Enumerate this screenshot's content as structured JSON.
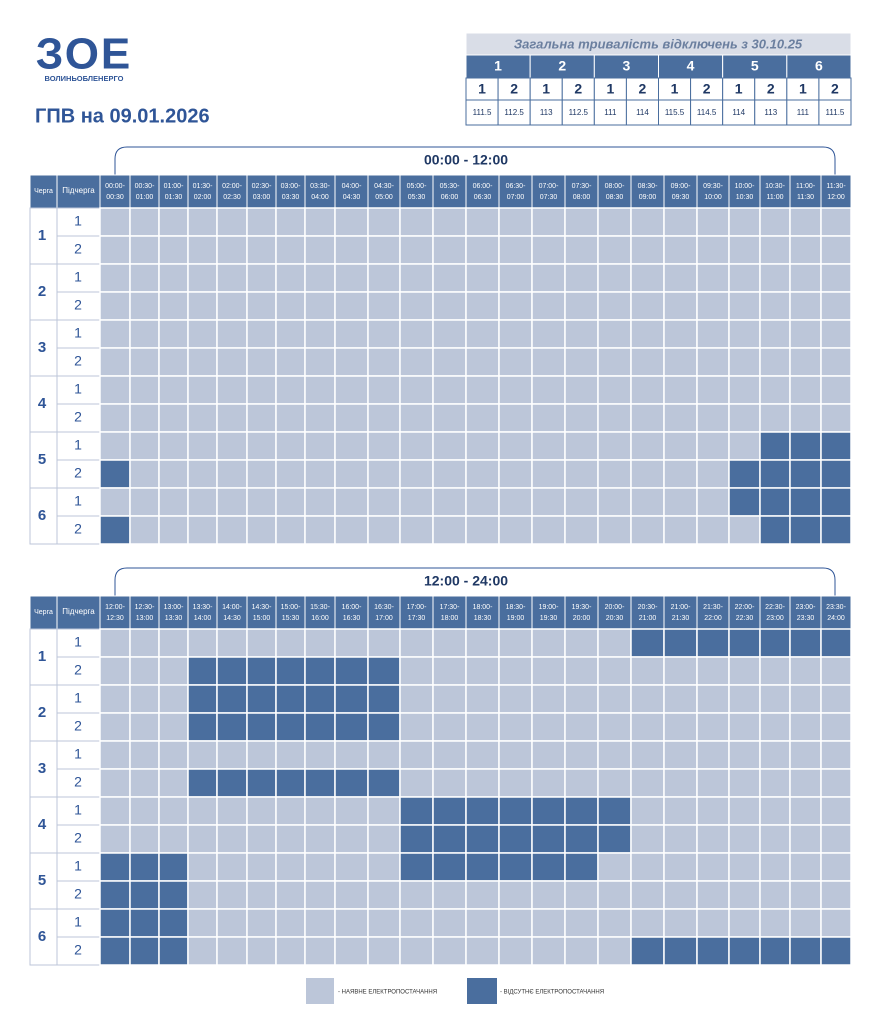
{
  "logo": {
    "mark": "ЗОЕ",
    "name": "ВОЛИНЬОБЛЕНЕРГО"
  },
  "title": "ГПВ на 09.01.2026",
  "summary": {
    "title": "Загальна тривалість відключень з 30.10.25",
    "queues": [
      "1",
      "2",
      "3",
      "4",
      "5",
      "6"
    ],
    "subqueues": [
      [
        "1",
        "2"
      ],
      [
        "1",
        "2"
      ],
      [
        "1",
        "2"
      ],
      [
        "1",
        "2"
      ],
      [
        "1",
        "2"
      ],
      [
        "1",
        "2"
      ]
    ],
    "values": [
      "111.5",
      "112.5",
      "113",
      "112.5",
      "111",
      "114",
      "115.5",
      "114.5",
      "114",
      "113",
      "111",
      "111.5"
    ]
  },
  "tables": [
    {
      "caption": "00:00 - 12:00",
      "queue_header": "Черга",
      "subqueue_header": "Підчерга",
      "slots": [
        [
          "00:00-",
          "00:30"
        ],
        [
          "00:30-",
          "01:00"
        ],
        [
          "01:00-",
          "01:30"
        ],
        [
          "01:30-",
          "02:00"
        ],
        [
          "02:00-",
          "02:30"
        ],
        [
          "02:30-",
          "03:00"
        ],
        [
          "03:00-",
          "03:30"
        ],
        [
          "03:30-",
          "04:00"
        ],
        [
          "04:00-",
          "04:30"
        ],
        [
          "04:30-",
          "05:00"
        ],
        [
          "05:00-",
          "05:30"
        ],
        [
          "05:30-",
          "06:00"
        ],
        [
          "06:00-",
          "06:30"
        ],
        [
          "06:30-",
          "07:00"
        ],
        [
          "07:00-",
          "07:30"
        ],
        [
          "07:30-",
          "08:00"
        ],
        [
          "08:00-",
          "08:30"
        ],
        [
          "08:30-",
          "09:00"
        ],
        [
          "09:00-",
          "09:30"
        ],
        [
          "09:30-",
          "10:00"
        ],
        [
          "10:00-",
          "10:30"
        ],
        [
          "10:30-",
          "11:00"
        ],
        [
          "11:00-",
          "11:30"
        ],
        [
          "11:30-",
          "12:00"
        ]
      ],
      "rows": [
        {
          "queue": "1",
          "subqueues": [
            {
              "label": "1",
              "outage": [
                0,
                0,
                0,
                0,
                0,
                0,
                0,
                0,
                0,
                0,
                0,
                0,
                0,
                0,
                0,
                0,
                0,
                0,
                0,
                0,
                0,
                0,
                0,
                0
              ]
            },
            {
              "label": "2",
              "outage": [
                0,
                0,
                0,
                0,
                0,
                0,
                0,
                0,
                0,
                0,
                0,
                0,
                0,
                0,
                0,
                0,
                0,
                0,
                0,
                0,
                0,
                0,
                0,
                0
              ]
            }
          ]
        },
        {
          "queue": "2",
          "subqueues": [
            {
              "label": "1",
              "outage": [
                0,
                0,
                0,
                0,
                0,
                0,
                0,
                0,
                0,
                0,
                0,
                0,
                0,
                0,
                0,
                0,
                0,
                0,
                0,
                0,
                0,
                0,
                0,
                0
              ]
            },
            {
              "label": "2",
              "outage": [
                0,
                0,
                0,
                0,
                0,
                0,
                0,
                0,
                0,
                0,
                0,
                0,
                0,
                0,
                0,
                0,
                0,
                0,
                0,
                0,
                0,
                0,
                0,
                0
              ]
            }
          ]
        },
        {
          "queue": "3",
          "subqueues": [
            {
              "label": "1",
              "outage": [
                0,
                0,
                0,
                0,
                0,
                0,
                0,
                0,
                0,
                0,
                0,
                0,
                0,
                0,
                0,
                0,
                0,
                0,
                0,
                0,
                0,
                0,
                0,
                0
              ]
            },
            {
              "label": "2",
              "outage": [
                0,
                0,
                0,
                0,
                0,
                0,
                0,
                0,
                0,
                0,
                0,
                0,
                0,
                0,
                0,
                0,
                0,
                0,
                0,
                0,
                0,
                0,
                0,
                0
              ]
            }
          ]
        },
        {
          "queue": "4",
          "subqueues": [
            {
              "label": "1",
              "outage": [
                0,
                0,
                0,
                0,
                0,
                0,
                0,
                0,
                0,
                0,
                0,
                0,
                0,
                0,
                0,
                0,
                0,
                0,
                0,
                0,
                0,
                0,
                0,
                0
              ]
            },
            {
              "label": "2",
              "outage": [
                0,
                0,
                0,
                0,
                0,
                0,
                0,
                0,
                0,
                0,
                0,
                0,
                0,
                0,
                0,
                0,
                0,
                0,
                0,
                0,
                0,
                0,
                0,
                0
              ]
            }
          ]
        },
        {
          "queue": "5",
          "subqueues": [
            {
              "label": "1",
              "outage": [
                0,
                0,
                0,
                0,
                0,
                0,
                0,
                0,
                0,
                0,
                0,
                0,
                0,
                0,
                0,
                0,
                0,
                0,
                0,
                0,
                0,
                1,
                1,
                1
              ]
            },
            {
              "label": "2",
              "outage": [
                1,
                0,
                0,
                0,
                0,
                0,
                0,
                0,
                0,
                0,
                0,
                0,
                0,
                0,
                0,
                0,
                0,
                0,
                0,
                0,
                1,
                1,
                1,
                1
              ]
            }
          ]
        },
        {
          "queue": "6",
          "subqueues": [
            {
              "label": "1",
              "outage": [
                0,
                0,
                0,
                0,
                0,
                0,
                0,
                0,
                0,
                0,
                0,
                0,
                0,
                0,
                0,
                0,
                0,
                0,
                0,
                0,
                1,
                1,
                1,
                1
              ]
            },
            {
              "label": "2",
              "outage": [
                1,
                0,
                0,
                0,
                0,
                0,
                0,
                0,
                0,
                0,
                0,
                0,
                0,
                0,
                0,
                0,
                0,
                0,
                0,
                0,
                0,
                1,
                1,
                1
              ]
            }
          ]
        }
      ]
    },
    {
      "caption": "12:00 - 24:00",
      "queue_header": "Черга",
      "subqueue_header": "Підчерга",
      "slots": [
        [
          "12:00-",
          "12:30"
        ],
        [
          "12:30-",
          "13:00"
        ],
        [
          "13:00-",
          "13:30"
        ],
        [
          "13:30-",
          "14:00"
        ],
        [
          "14:00-",
          "14:30"
        ],
        [
          "14:30-",
          "15:00"
        ],
        [
          "15:00-",
          "15:30"
        ],
        [
          "15:30-",
          "16:00"
        ],
        [
          "16:00-",
          "16:30"
        ],
        [
          "16:30-",
          "17:00"
        ],
        [
          "17:00-",
          "17:30"
        ],
        [
          "17:30-",
          "18:00"
        ],
        [
          "18:00-",
          "18:30"
        ],
        [
          "18:30-",
          "19:00"
        ],
        [
          "19:00-",
          "19:30"
        ],
        [
          "19:30-",
          "20:00"
        ],
        [
          "20:00-",
          "20:30"
        ],
        [
          "20:30-",
          "21:00"
        ],
        [
          "21:00-",
          "21:30"
        ],
        [
          "21:30-",
          "22:00"
        ],
        [
          "22:00-",
          "22:30"
        ],
        [
          "22:30-",
          "23:00"
        ],
        [
          "23:00-",
          "23:30"
        ],
        [
          "23:30-",
          "24:00"
        ]
      ],
      "rows": [
        {
          "queue": "1",
          "subqueues": [
            {
              "label": "1",
              "outage": [
                0,
                0,
                0,
                0,
                0,
                0,
                0,
                0,
                0,
                0,
                0,
                0,
                0,
                0,
                0,
                0,
                0,
                1,
                1,
                1,
                1,
                1,
                1,
                1
              ]
            },
            {
              "label": "2",
              "outage": [
                0,
                0,
                0,
                1,
                1,
                1,
                1,
                1,
                1,
                1,
                0,
                0,
                0,
                0,
                0,
                0,
                0,
                0,
                0,
                0,
                0,
                0,
                0,
                0
              ]
            }
          ]
        },
        {
          "queue": "2",
          "subqueues": [
            {
              "label": "1",
              "outage": [
                0,
                0,
                0,
                1,
                1,
                1,
                1,
                1,
                1,
                1,
                0,
                0,
                0,
                0,
                0,
                0,
                0,
                0,
                0,
                0,
                0,
                0,
                0,
                0
              ]
            },
            {
              "label": "2",
              "outage": [
                0,
                0,
                0,
                1,
                1,
                1,
                1,
                1,
                1,
                1,
                0,
                0,
                0,
                0,
                0,
                0,
                0,
                0,
                0,
                0,
                0,
                0,
                0,
                0
              ]
            }
          ]
        },
        {
          "queue": "3",
          "subqueues": [
            {
              "label": "1",
              "outage": [
                0,
                0,
                0,
                0,
                0,
                0,
                0,
                0,
                0,
                0,
                0,
                0,
                0,
                0,
                0,
                0,
                0,
                0,
                0,
                0,
                0,
                0,
                0,
                0
              ]
            },
            {
              "label": "2",
              "outage": [
                0,
                0,
                0,
                1,
                1,
                1,
                1,
                1,
                1,
                1,
                0,
                0,
                0,
                0,
                0,
                0,
                0,
                0,
                0,
                0,
                0,
                0,
                0,
                0
              ]
            }
          ]
        },
        {
          "queue": "4",
          "subqueues": [
            {
              "label": "1",
              "outage": [
                0,
                0,
                0,
                0,
                0,
                0,
                0,
                0,
                0,
                0,
                1,
                1,
                1,
                1,
                1,
                1,
                1,
                0,
                0,
                0,
                0,
                0,
                0,
                0
              ]
            },
            {
              "label": "2",
              "outage": [
                0,
                0,
                0,
                0,
                0,
                0,
                0,
                0,
                0,
                0,
                1,
                1,
                1,
                1,
                1,
                1,
                1,
                0,
                0,
                0,
                0,
                0,
                0,
                0
              ]
            }
          ]
        },
        {
          "queue": "5",
          "subqueues": [
            {
              "label": "1",
              "outage": [
                1,
                1,
                1,
                0,
                0,
                0,
                0,
                0,
                0,
                0,
                1,
                1,
                1,
                1,
                1,
                1,
                0,
                0,
                0,
                0,
                0,
                0,
                0,
                0
              ]
            },
            {
              "label": "2",
              "outage": [
                1,
                1,
                1,
                0,
                0,
                0,
                0,
                0,
                0,
                0,
                0,
                0,
                0,
                0,
                0,
                0,
                0,
                0,
                0,
                0,
                0,
                0,
                0,
                0
              ]
            }
          ]
        },
        {
          "queue": "6",
          "subqueues": [
            {
              "label": "1",
              "outage": [
                1,
                1,
                1,
                0,
                0,
                0,
                0,
                0,
                0,
                0,
                0,
                0,
                0,
                0,
                0,
                0,
                0,
                0,
                0,
                0,
                0,
                0,
                0,
                0
              ]
            },
            {
              "label": "2",
              "outage": [
                1,
                1,
                1,
                0,
                0,
                0,
                0,
                0,
                0,
                0,
                0,
                0,
                0,
                0,
                0,
                0,
                0,
                1,
                1,
                1,
                1,
                1,
                1,
                1
              ]
            }
          ]
        }
      ]
    }
  ],
  "legend": {
    "available": "- НАЯВНЕ ЕЛЕКТРОПОСТАЧАННЯ",
    "missing": "- ВІДСУТНЄ ЕЛЕКТРОПОСТАЧАННЯ"
  }
}
